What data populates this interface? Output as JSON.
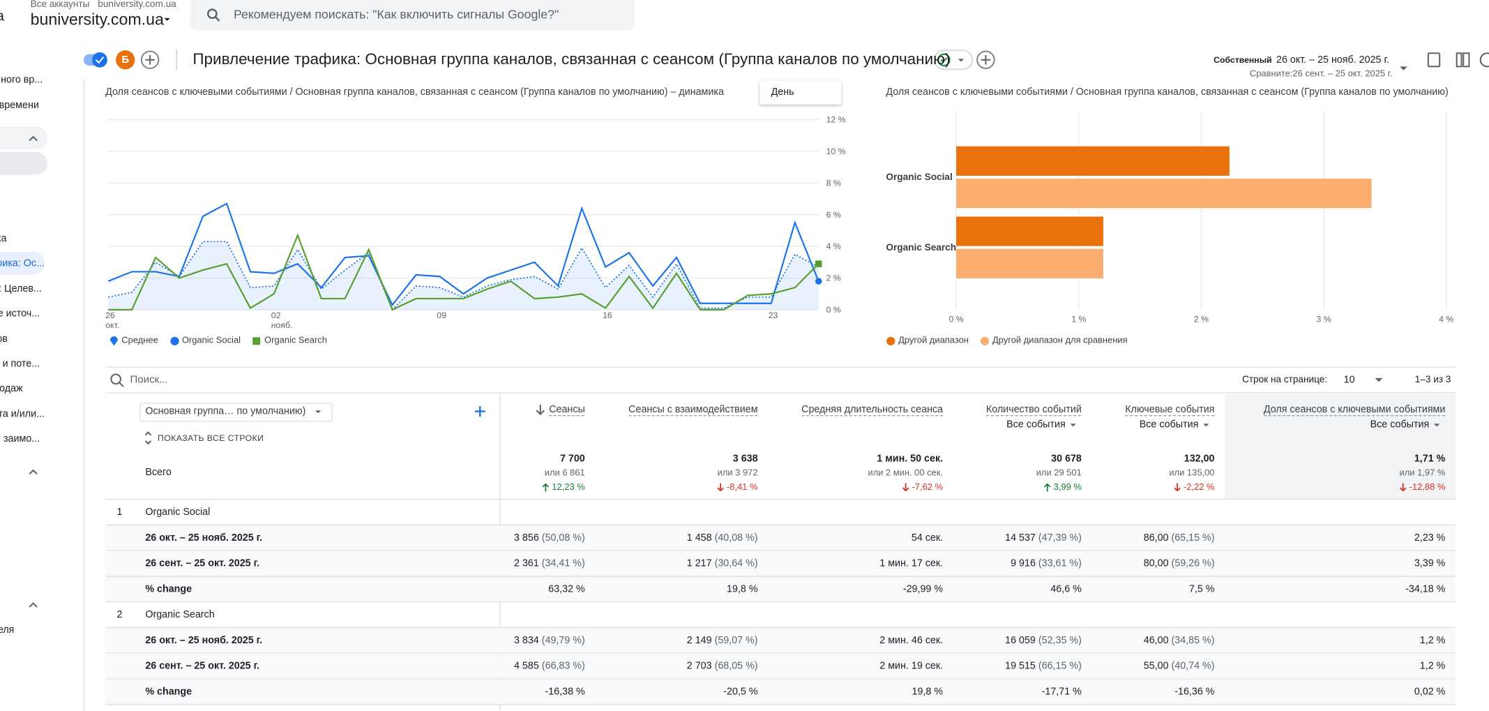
{
  "header": {
    "app_partial": "а",
    "breadcrumb": [
      "Все аккаунты",
      "buniversity.com.ua"
    ],
    "account": "buniversity.com.ua",
    "search_placeholder": "Рекомендуем поискать: \"Как включить сигналы Google?\""
  },
  "toolbar": {
    "avatar": "Б",
    "title": "Привлечение трафика: Основная группа каналов, связанная с сеансом (Группа каналов по умолчанию)",
    "comparison_label": "Собственный",
    "date_range": "26 окт. – 25 нояб. 2025 г.",
    "compare_range": "Сравните:26 сент. – 25 окт. 2025 г."
  },
  "sidebar": {
    "items": [
      "ного вр...",
      "времени",
      "ка",
      "рика: Ос...",
      ": Целев...",
      "е источ...",
      "ов",
      "и поте...",
      "одаж",
      "та и/или...",
      "заимо...",
      "еля"
    ],
    "selected": 3
  },
  "chart_data": [
    {
      "type": "line",
      "title": "Доля сеансов с ключевыми событиями / Основная группа каналов, связанная с сеансом (Группа каналов по умолчанию) – динамика",
      "interval": "День",
      "categories": [
        "26\nокт.",
        null,
        null,
        null,
        null,
        null,
        null,
        "02\nнояб.",
        null,
        null,
        null,
        null,
        null,
        null,
        "09",
        null,
        null,
        null,
        null,
        null,
        null,
        "16",
        null,
        null,
        null,
        null,
        null,
        null,
        "23",
        null,
        null
      ],
      "ylim": [
        0,
        12
      ],
      "yticks": [
        {
          "value": 0,
          "label": "0 %"
        },
        {
          "value": 2,
          "label": "2 %"
        },
        {
          "value": 4,
          "label": "4 %"
        },
        {
          "value": 6,
          "label": "6 %"
        },
        {
          "value": 8,
          "label": "8 %"
        },
        {
          "value": 10,
          "label": "10 %"
        },
        {
          "value": 12,
          "label": "12 %"
        }
      ],
      "grid": true,
      "series": [
        {
          "name": "Среднее",
          "color": "#1a73e8",
          "style": "dotted",
          "area": true,
          "marker": "drop",
          "values": [
            0.8,
            1.1,
            3.0,
            2.1,
            4.3,
            4.3,
            1.4,
            1.5,
            3.8,
            1.3,
            2.5,
            3.6,
            0,
            1.5,
            1.4,
            0.8,
            1.5,
            1.9,
            2.1,
            1.3,
            3.9,
            1.4,
            2.8,
            0.8,
            2.9,
            0.1,
            0.1,
            0.8,
            0.8,
            3.5,
            2.7
          ]
        },
        {
          "name": "Organic Social",
          "color": "#1a73e8",
          "style": "solid",
          "marker": "circle",
          "values": [
            1.8,
            2.4,
            2.4,
            2.1,
            5.9,
            6.7,
            2.4,
            2.3,
            2.9,
            1.4,
            3.3,
            3.4,
            0.3,
            2.2,
            2.1,
            1.0,
            2.0,
            2.5,
            3.0,
            1.5,
            6.4,
            2.7,
            3.6,
            1.5,
            3.3,
            0.4,
            0.4,
            0.4,
            0.4,
            5.5,
            1.8
          ]
        },
        {
          "name": "Organic Search",
          "color": "#5a9e2f",
          "style": "solid",
          "marker": "square",
          "values": [
            0,
            0,
            3.3,
            2.0,
            2.5,
            2.9,
            0.1,
            1.0,
            4.7,
            0.7,
            0.7,
            3.8,
            0,
            0.7,
            0.7,
            0.7,
            1.3,
            1.8,
            0.7,
            0.8,
            1.0,
            0.1,
            2.1,
            0.1,
            2.3,
            0,
            0,
            0.9,
            1.0,
            1.4,
            2.9
          ]
        }
      ]
    },
    {
      "type": "bar",
      "orientation": "horizontal",
      "title": "Доля сеансов с ключевыми событиями / Основная группа каналов, связанная с сеансом (Группа каналов по умолчанию)",
      "categories": [
        "Organic Social",
        "Organic Search"
      ],
      "xlim": [
        0,
        4
      ],
      "xticks": [
        {
          "value": 0,
          "label": "0 %"
        },
        {
          "value": 1,
          "label": "1 %"
        },
        {
          "value": 2,
          "label": "2 %"
        },
        {
          "value": 3,
          "label": "3 %"
        },
        {
          "value": 4,
          "label": "4 %"
        }
      ],
      "grid": true,
      "series": [
        {
          "name": "Другой диапазон",
          "color": "#e8710a",
          "values": [
            2.23,
            1.2
          ]
        },
        {
          "name": "Другой диапазон для сравнения",
          "color": "#fbad70",
          "values": [
            3.39,
            1.2
          ]
        }
      ]
    }
  ],
  "table": {
    "search_placeholder": "Поиск...",
    "rows_per_page_label": "Строк на странице:",
    "rows_per_page": 10,
    "pagination": "1–3 из 3",
    "dimension": "Основная группа… по умолчанию)",
    "show_all": "ПОКАЗАТЬ ВСЕ СТРОКИ",
    "columns": [
      {
        "name": "Сеансы",
        "sorted": true
      },
      {
        "name": "Сеансы с взаимодействием"
      },
      {
        "name": "Средняя длительность сеанса"
      },
      {
        "name": "Количество событий",
        "filter": "Все события"
      },
      {
        "name": "Ключевые события",
        "filter": "Все события"
      },
      {
        "name": "Доля сеансов с ключевыми событиями",
        "filter": "Все события",
        "highlight": true
      }
    ],
    "total": {
      "label": "Всего",
      "cells": [
        {
          "value": "7 700",
          "compare": "или 6 861",
          "change": "12,23 %",
          "direction": "up"
        },
        {
          "value": "3 638",
          "compare": "или 3 972",
          "change": "-8,41 %",
          "direction": "down"
        },
        {
          "value": "1 мин. 50 сек.",
          "compare": "или 2 мин. 00 сек.",
          "change": "-7,62 %",
          "direction": "down"
        },
        {
          "value": "30 678",
          "compare": "или 29 501",
          "change": "3,99 %",
          "direction": "up"
        },
        {
          "value": "132,00",
          "compare": "или 135,00",
          "change": "-2,22 %",
          "direction": "down"
        },
        {
          "value": "1,71 %",
          "compare": "или 1,97 %",
          "change": "-12,88 %",
          "direction": "down"
        }
      ]
    },
    "groups": [
      {
        "index": 1,
        "name": "Organic Social",
        "rows": [
          {
            "label": "26 окт. – 25 нояб. 2025 г.",
            "cells": [
              {
                "value": "3 856",
                "share": "(50,08 %)"
              },
              {
                "value": "1 458",
                "share": "(40,08 %)"
              },
              "54 сек.",
              {
                "value": "14 537",
                "share": "(47,39 %)"
              },
              {
                "value": "86,00",
                "share": "(65,15 %)"
              },
              "2,23 %"
            ]
          },
          {
            "label": "26 сент. – 25 окт. 2025 г.",
            "cells": [
              {
                "value": "2 361",
                "share": "(34,41 %)"
              },
              {
                "value": "1 217",
                "share": "(30,64 %)"
              },
              "1 мин. 17 сек.",
              {
                "value": "9 916",
                "share": "(33,61 %)"
              },
              {
                "value": "80,00",
                "share": "(59,26 %)"
              },
              "3,39 %"
            ]
          },
          {
            "label": "% change",
            "cells": [
              "63,32 %",
              "19,8 %",
              "-29,99 %",
              "46,6 %",
              "7,5 %",
              "-34,18 %"
            ]
          }
        ]
      },
      {
        "index": 2,
        "name": "Organic Search",
        "rows": [
          {
            "label": "26 окт. – 25 нояб. 2025 г.",
            "cells": [
              {
                "value": "3 834",
                "share": "(49,79 %)"
              },
              {
                "value": "2 149",
                "share": "(59,07 %)"
              },
              "2 мин. 46 сек.",
              {
                "value": "16 059",
                "share": "(52,35 %)"
              },
              {
                "value": "46,00",
                "share": "(34,85 %)"
              },
              "1,2 %"
            ]
          },
          {
            "label": "26 сент. – 25 окт. 2025 г.",
            "cells": [
              {
                "value": "4 585",
                "share": "(66,83 %)"
              },
              {
                "value": "2 703",
                "share": "(68,05 %)"
              },
              "2 мин. 19 сек.",
              {
                "value": "19 515",
                "share": "(66,15 %)"
              },
              {
                "value": "55,00",
                "share": "(40,74 %)"
              },
              "1,2 %"
            ]
          },
          {
            "label": "% change",
            "cells": [
              "-16,38 %",
              "-20,5 %",
              "19,8 %",
              "-17,71 %",
              "-16,36 %",
              "0,02 %"
            ]
          }
        ]
      }
    ]
  }
}
